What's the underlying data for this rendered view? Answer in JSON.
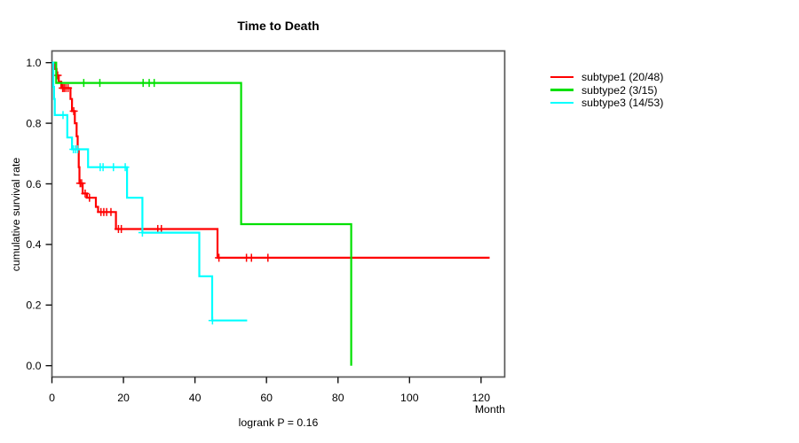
{
  "chart_data": {
    "type": "line",
    "subtype": "kaplan-meier-step-plot",
    "title": "Time to Death",
    "xlabel": "Month",
    "ylabel": "cumulative survival rate",
    "annotation": "logrank P = 0.16",
    "xlim": [
      0,
      127
    ],
    "ylim": [
      0.0,
      1.0
    ],
    "xticks": [
      0,
      20,
      40,
      60,
      80,
      100,
      120
    ],
    "yticks": [
      "0.0",
      "0.2",
      "0.4",
      "0.6",
      "0.8",
      "1.0"
    ],
    "grid": false,
    "legend_position": "right-outside",
    "frame_color": "#5a5a5a",
    "series": [
      {
        "name": "subtype1 (20/48)",
        "color": "#ff0000",
        "end_month": 122.4,
        "steps": [
          [
            0,
            1.0
          ],
          [
            0.7,
            0.979
          ],
          [
            1.3,
            0.958
          ],
          [
            1.9,
            0.937
          ],
          [
            2.6,
            0.916
          ],
          [
            5.2,
            0.88
          ],
          [
            5.6,
            0.84
          ],
          [
            6.4,
            0.8
          ],
          [
            6.9,
            0.757
          ],
          [
            7.2,
            0.714
          ],
          [
            7.5,
            0.655
          ],
          [
            7.7,
            0.602
          ],
          [
            8.6,
            0.568
          ],
          [
            9.8,
            0.554
          ],
          [
            12.3,
            0.524
          ],
          [
            12.9,
            0.507
          ],
          [
            17.9,
            0.451
          ],
          [
            46.3,
            0.356
          ]
        ],
        "censors": [
          [
            1.6,
            0.958
          ],
          [
            3.0,
            0.916
          ],
          [
            3.4,
            0.916
          ],
          [
            3.9,
            0.916
          ],
          [
            4.5,
            0.916
          ],
          [
            6.1,
            0.84
          ],
          [
            7.9,
            0.602
          ],
          [
            8.3,
            0.602
          ],
          [
            9.3,
            0.568
          ],
          [
            10.5,
            0.554
          ],
          [
            13.7,
            0.507
          ],
          [
            14.5,
            0.507
          ],
          [
            15.3,
            0.507
          ],
          [
            16.5,
            0.507
          ],
          [
            18.6,
            0.451
          ],
          [
            19.4,
            0.451
          ],
          [
            29.6,
            0.451
          ],
          [
            30.6,
            0.451
          ],
          [
            46.7,
            0.356
          ],
          [
            54.4,
            0.356
          ],
          [
            55.8,
            0.356
          ],
          [
            60.4,
            0.356
          ]
        ]
      },
      {
        "name": "subtype2 (3/15)",
        "color": "#00e000",
        "end_month": 83.7,
        "steps": [
          [
            0,
            1.0
          ],
          [
            1.2,
            0.933
          ],
          [
            52.9,
            0.467
          ],
          [
            83.7,
            0.0
          ]
        ],
        "censors": [
          [
            8.9,
            0.933
          ],
          [
            13.4,
            0.933
          ],
          [
            25.5,
            0.933
          ],
          [
            27.2,
            0.933
          ],
          [
            28.6,
            0.933
          ]
        ]
      },
      {
        "name": "subtype3 (14/53)",
        "color": "#00ffff",
        "end_month": 54.6,
        "steps": [
          [
            0,
            1.0
          ],
          [
            0.4,
            0.92
          ],
          [
            0.6,
            0.88
          ],
          [
            0.8,
            0.827
          ],
          [
            4.3,
            0.753
          ],
          [
            5.6,
            0.714
          ],
          [
            10.1,
            0.655
          ],
          [
            21.0,
            0.554
          ],
          [
            25.3,
            0.439
          ],
          [
            41.2,
            0.295
          ],
          [
            44.8,
            0.149
          ]
        ],
        "censors": [
          [
            3.1,
            0.827
          ],
          [
            6.0,
            0.714
          ],
          [
            6.6,
            0.714
          ],
          [
            7.2,
            0.714
          ],
          [
            13.5,
            0.655
          ],
          [
            14.3,
            0.655
          ],
          [
            17.2,
            0.655
          ],
          [
            20.5,
            0.655
          ],
          [
            25.3,
            0.439
          ],
          [
            44.9,
            0.149
          ]
        ]
      }
    ]
  }
}
